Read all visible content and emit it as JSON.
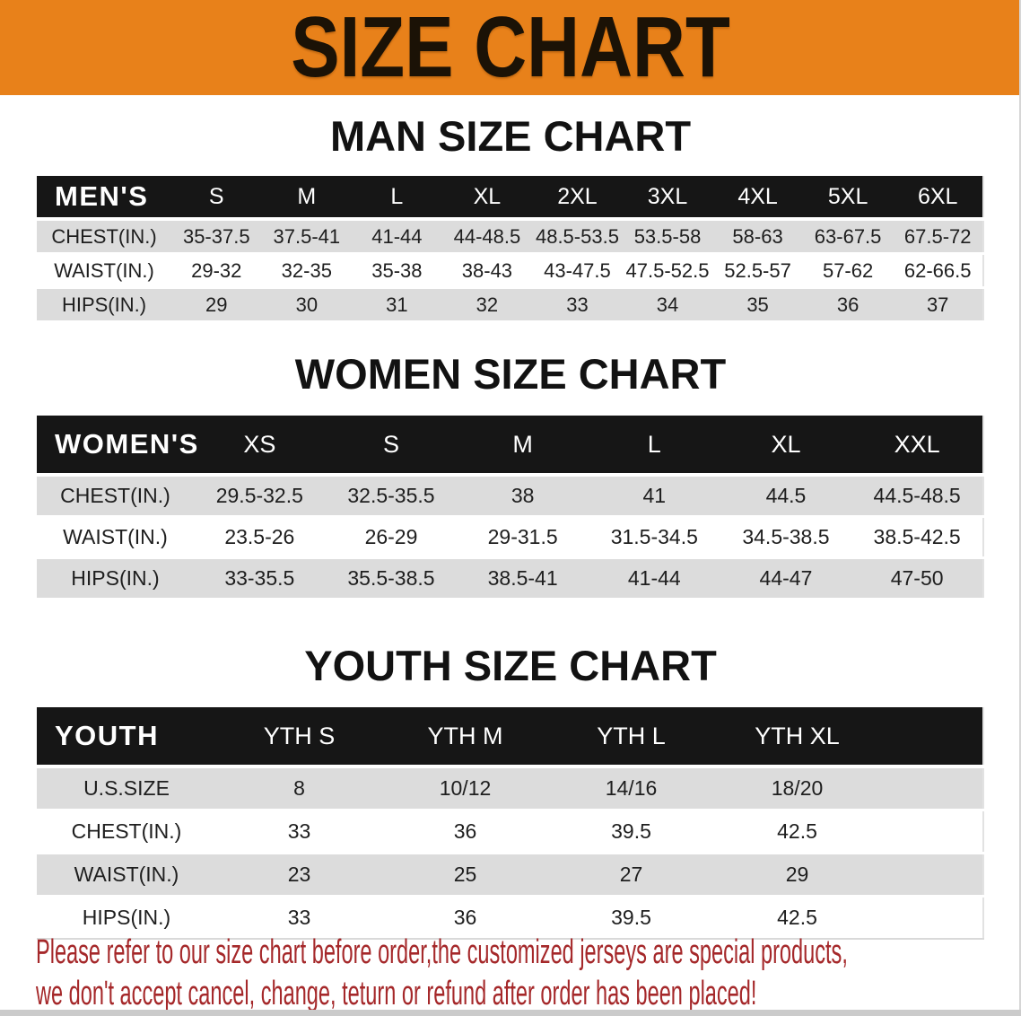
{
  "banner": {
    "title": "SIZE CHART"
  },
  "colors": {
    "banner_bg": "#e8811a",
    "header_bg": "#161616",
    "row_stripe": "#dcdcdc",
    "disclaimer": "#a5282a"
  },
  "sections": [
    {
      "title": "MAN SIZE CHART",
      "table": {
        "label": "MEN'S",
        "sizes": [
          "S",
          "M",
          "L",
          "XL",
          "2XL",
          "3XL",
          "4XL",
          "5XL",
          "6XL"
        ],
        "rows": [
          {
            "label": "CHEST(IN.)",
            "values": [
              "35-37.5",
              "37.5-41",
              "41-44",
              "44-48.5",
              "48.5-53.5",
              "53.5-58",
              "58-63",
              "63-67.5",
              "67.5-72"
            ]
          },
          {
            "label": "WAIST(IN.)",
            "values": [
              "29-32",
              "32-35",
              "35-38",
              "38-43",
              "43-47.5",
              "47.5-52.5",
              "52.5-57",
              "57-62",
              "62-66.5"
            ]
          },
          {
            "label": "HIPS(IN.)",
            "values": [
              "29",
              "30",
              "31",
              "32",
              "33",
              "34",
              "35",
              "36",
              "37"
            ]
          }
        ]
      }
    },
    {
      "title": "WOMEN SIZE CHART",
      "table": {
        "label": "WOMEN'S",
        "sizes": [
          "XS",
          "S",
          "M",
          "L",
          "XL",
          "XXL"
        ],
        "rows": [
          {
            "label": "CHEST(IN.)",
            "values": [
              "29.5-32.5",
              "32.5-35.5",
              "38",
              "41",
              "44.5",
              "44.5-48.5"
            ]
          },
          {
            "label": "WAIST(IN.)",
            "values": [
              "23.5-26",
              "26-29",
              "29-31.5",
              "31.5-34.5",
              "34.5-38.5",
              "38.5-42.5"
            ]
          },
          {
            "label": "HIPS(IN.)",
            "values": [
              "33-35.5",
              "35.5-38.5",
              "38.5-41",
              "41-44",
              "44-47",
              "47-50"
            ]
          }
        ]
      }
    },
    {
      "title": "YOUTH SIZE CHART",
      "table": {
        "label": "YOUTH",
        "sizes": [
          "YTH S",
          "YTH M",
          "YTH L",
          "YTH XL"
        ],
        "rows": [
          {
            "label": "U.S.SIZE",
            "values": [
              "8",
              "10/12",
              "14/16",
              "18/20"
            ]
          },
          {
            "label": "CHEST(IN.)",
            "values": [
              "33",
              "36",
              "39.5",
              "42.5"
            ]
          },
          {
            "label": "WAIST(IN.)",
            "values": [
              "23",
              "25",
              "27",
              "29"
            ]
          },
          {
            "label": "HIPS(IN.)",
            "values": [
              "33",
              "36",
              "39.5",
              "42.5"
            ]
          }
        ]
      }
    }
  ],
  "disclaimer": {
    "line1": "Please refer to our size chart before order,the customized jerseys are special products,",
    "line2": "we don't accept cancel, change, teturn or refund after order has been placed!"
  }
}
